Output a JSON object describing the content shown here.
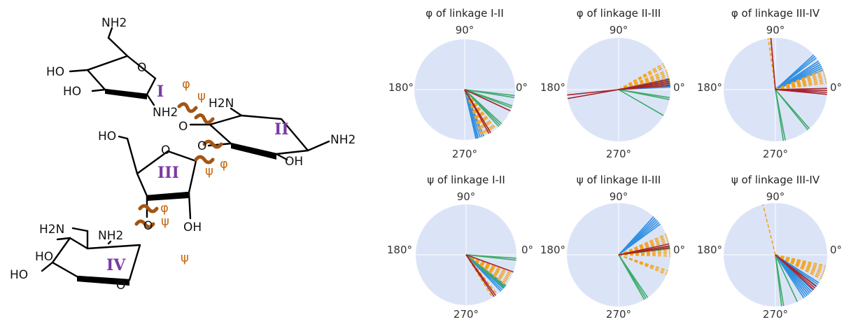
{
  "molecule": {
    "groups": [
      "NH2",
      "HO",
      "HO",
      "NH2",
      "H2N",
      "NH2",
      "OH",
      "HO",
      "O",
      "O",
      "O",
      "O",
      "HO",
      "OH",
      "H2N",
      "NH2",
      "HO",
      "HO",
      "O"
    ],
    "ring_labels": [
      "I",
      "II",
      "III",
      "IV"
    ],
    "angles": [
      "φ",
      "ψ",
      "ψ",
      "φ",
      "ψ",
      "φ",
      "ψ"
    ],
    "colors": {
      "ring_label": "#7b3aa5",
      "torsion": "#a35513",
      "bond": "#000000"
    }
  },
  "colors": {
    "disk": "#dbe4f7",
    "blue": "#2f8fe0",
    "orange": "#f5a21b",
    "green": "#3dab6a",
    "red": "#a8232a"
  },
  "ticks": {
    "t0": "0°",
    "t90": "90°",
    "t180": "180°",
    "t270": "270°"
  },
  "panels": [
    {
      "title": "φ of linkage I-II",
      "lines": [
        [
          "blue",
          288,
          5
        ],
        [
          "blue",
          284,
          2
        ],
        [
          "orange",
          296,
          6
        ],
        [
          "orange",
          305,
          4
        ],
        [
          "green",
          315,
          3
        ],
        [
          "green",
          340,
          2
        ],
        [
          "green",
          352,
          2
        ],
        [
          "red",
          300,
          2
        ],
        [
          "red",
          335,
          1
        ]
      ]
    },
    {
      "title": "φ of linkage II-III",
      "lines": [
        [
          "blue",
          8,
          5
        ],
        [
          "blue",
          4,
          2
        ],
        [
          "orange",
          14,
          8
        ],
        [
          "orange",
          28,
          3
        ],
        [
          "green",
          350,
          2
        ],
        [
          "green",
          330,
          1
        ],
        [
          "red",
          8,
          4
        ],
        [
          "red",
          190,
          1
        ],
        [
          "red",
          186,
          1
        ]
      ]
    },
    {
      "title": "φ of linkage III-IV",
      "lines": [
        [
          "blue",
          28,
          6
        ],
        [
          "blue",
          40,
          3
        ],
        [
          "orange",
          15,
          8
        ],
        [
          "orange",
          97,
          2
        ],
        [
          "green",
          310,
          2
        ],
        [
          "green",
          280,
          2
        ],
        [
          "red",
          358,
          4
        ],
        [
          "red",
          95,
          1
        ]
      ]
    },
    {
      "title": "ψ of linkage I-II",
      "lines": [
        [
          "blue",
          318,
          5
        ],
        [
          "orange",
          330,
          8
        ],
        [
          "orange",
          305,
          4
        ],
        [
          "green",
          355,
          2
        ],
        [
          "green",
          320,
          2
        ],
        [
          "red",
          305,
          2
        ],
        [
          "red",
          340,
          1
        ]
      ]
    },
    {
      "title": "ψ of linkage II-III",
      "lines": [
        [
          "blue",
          42,
          6
        ],
        [
          "orange",
          18,
          6
        ],
        [
          "orange",
          2,
          4
        ],
        [
          "orange",
          340,
          3
        ],
        [
          "green",
          302,
          3
        ],
        [
          "green",
          8,
          2
        ],
        [
          "red",
          10,
          3
        ]
      ]
    },
    {
      "title": "ψ of linkage III-IV",
      "lines": [
        [
          "blue",
          310,
          7
        ],
        [
          "blue",
          325,
          3
        ],
        [
          "orange",
          340,
          8
        ],
        [
          "orange",
          104,
          1
        ],
        [
          "green",
          278,
          2
        ],
        [
          "green",
          295,
          1
        ],
        [
          "red",
          320,
          3
        ]
      ]
    }
  ]
}
